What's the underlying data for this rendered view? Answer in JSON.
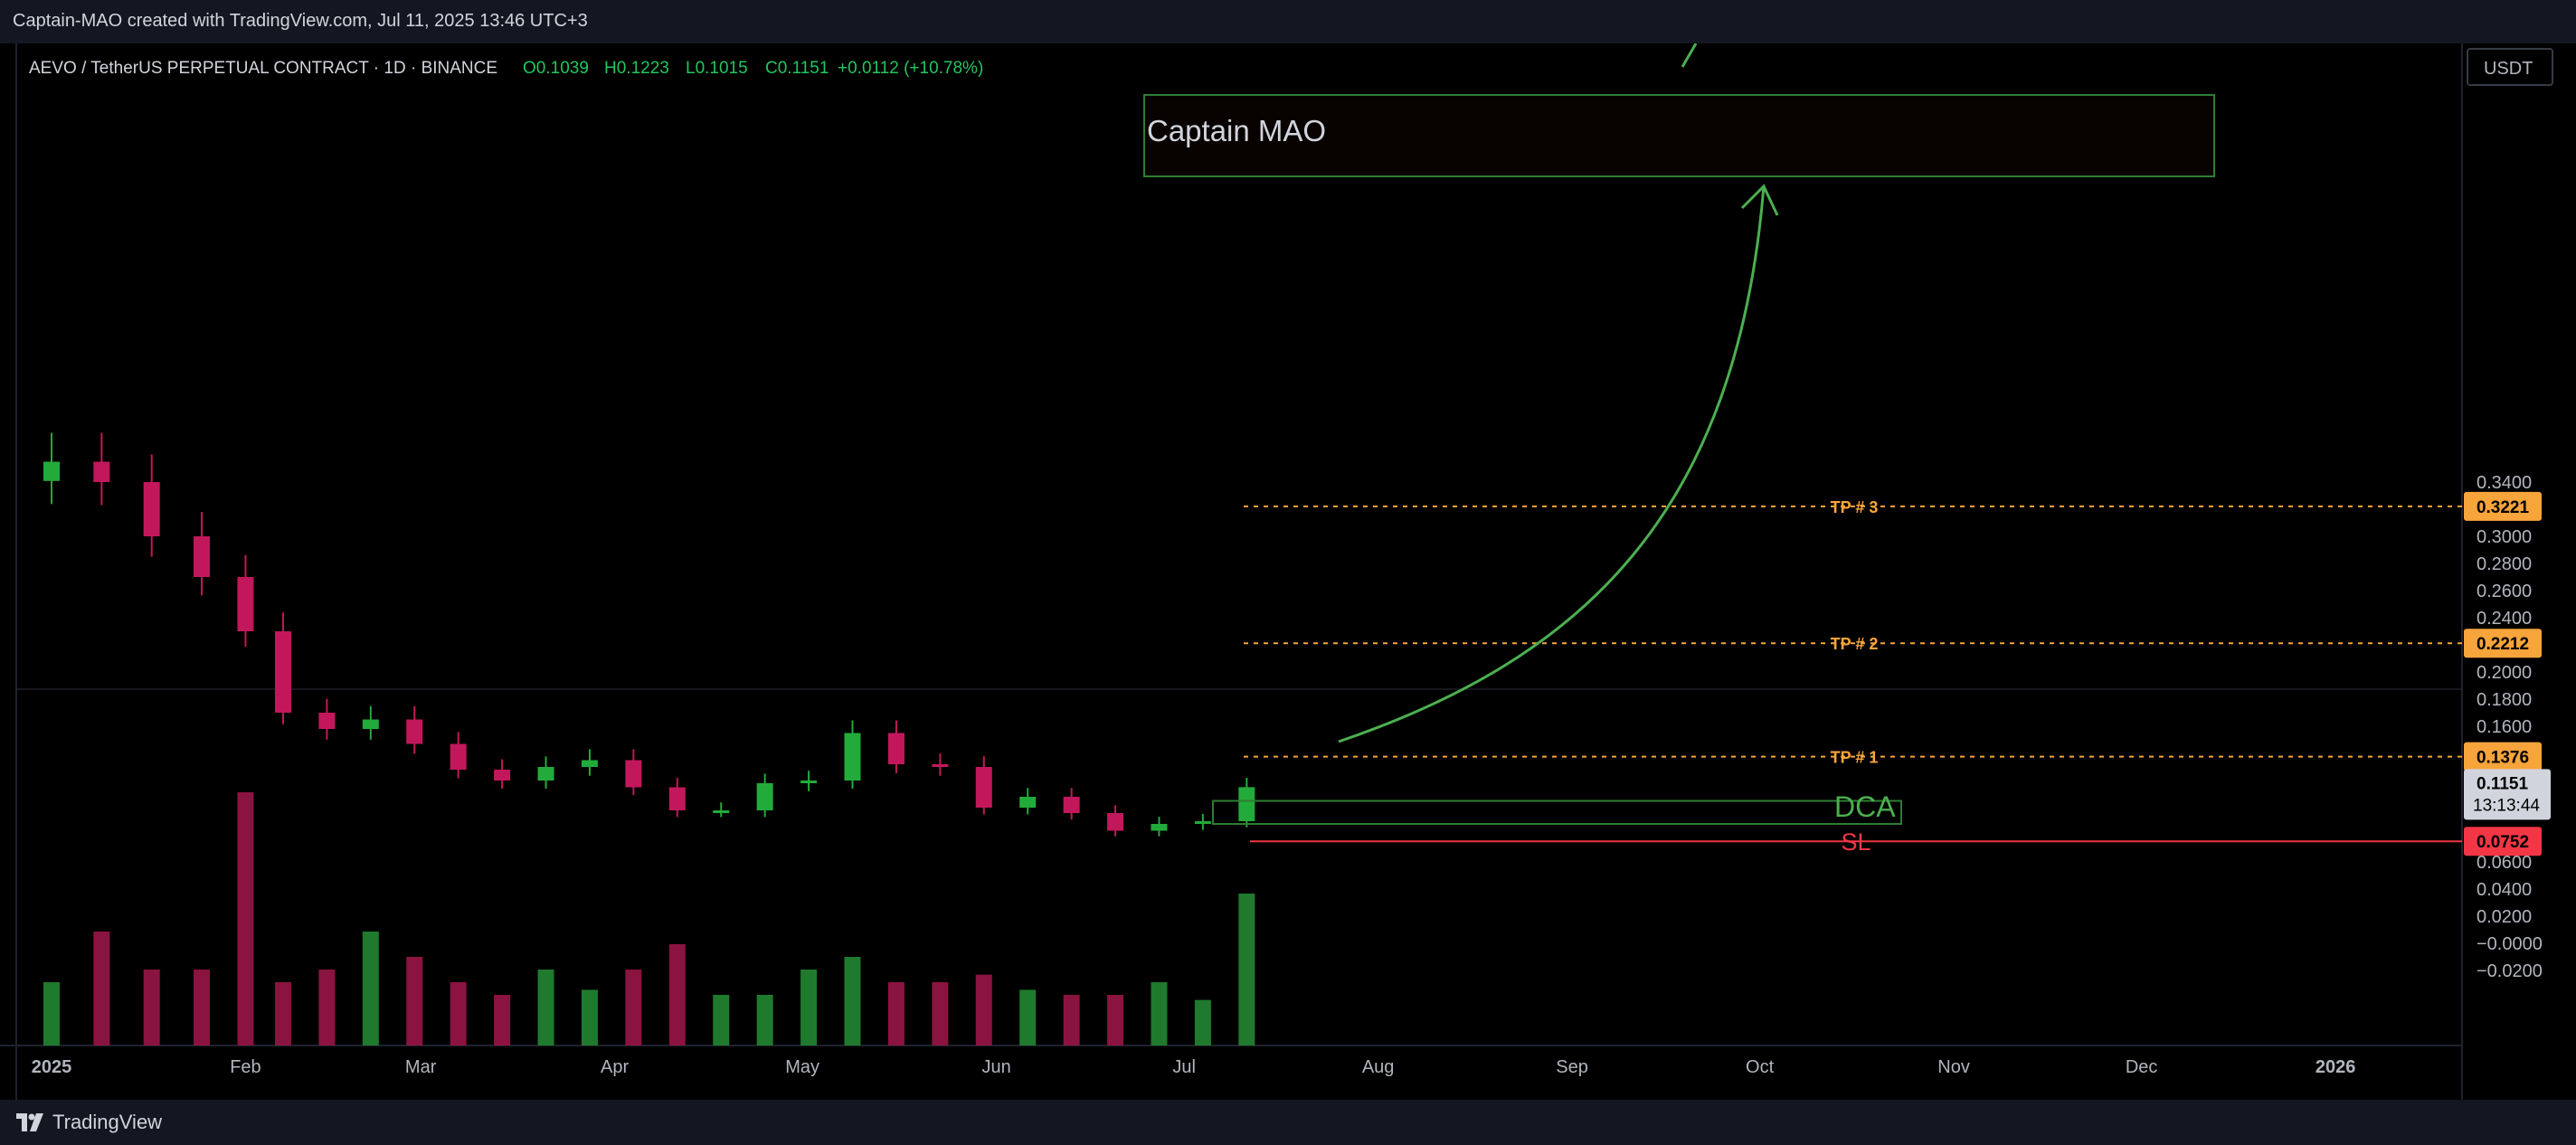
{
  "header": {
    "credit": "Captain-MAO created with TradingView.com, Jul 11, 2025 13:46 UTC+3"
  },
  "footer": {
    "brand": "TradingView"
  },
  "legend": {
    "symbol": "AEVO / TetherUS PERPETUAL CONTRACT · 1D · BINANCE",
    "open": "O0.1039",
    "high": "H0.1223",
    "low": "L0.1015",
    "close": "C0.1151",
    "change": "+0.0112 (+10.78%)"
  },
  "currency_button": "USDT",
  "colors": {
    "up": "#22ab3a",
    "down": "#c2185b",
    "tp": "#f7a43b",
    "sl": "#f23645",
    "green_annotation": "#4caf50"
  },
  "chart_data": {
    "type": "candlestick",
    "x": [
      "2025-01-01",
      "2025-01-09",
      "2025-01-17",
      "2025-01-25",
      "2025-02-01",
      "2025-02-07",
      "2025-02-14",
      "2025-02-21",
      "2025-02-28",
      "2025-03-07",
      "2025-03-14",
      "2025-03-21",
      "2025-03-28",
      "2025-04-04",
      "2025-04-11",
      "2025-04-18",
      "2025-04-25",
      "2025-05-02",
      "2025-05-09",
      "2025-05-16",
      "2025-05-23",
      "2025-05-30",
      "2025-06-06",
      "2025-06-13",
      "2025-06-20",
      "2025-06-27",
      "2025-07-04",
      "2025-07-11"
    ],
    "close_values": [
      0.355,
      0.34,
      0.3,
      0.27,
      0.23,
      0.17,
      0.158,
      0.165,
      0.147,
      0.128,
      0.12,
      0.13,
      0.135,
      0.115,
      0.098,
      0.098,
      0.118,
      0.12,
      0.155,
      0.132,
      0.13,
      0.1,
      0.108,
      0.096,
      0.083,
      0.088,
      0.09,
      0.1151
    ],
    "volume_relative": [
      0.25,
      0.45,
      0.3,
      0.3,
      1.0,
      0.25,
      0.3,
      0.45,
      0.35,
      0.25,
      0.2,
      0.3,
      0.22,
      0.3,
      0.4,
      0.2,
      0.2,
      0.3,
      0.35,
      0.25,
      0.25,
      0.28,
      0.22,
      0.2,
      0.2,
      0.25,
      0.18,
      0.6
    ],
    "y_axis": {
      "unit": "USDT",
      "ticks": [
        "0.3400",
        "0.3000",
        "0.2800",
        "0.2600",
        "0.2400",
        "0.2000",
        "0.1800",
        "0.1600",
        "0.0600",
        "0.0400",
        "0.0200",
        "−0.0000",
        "−0.0200"
      ]
    },
    "x_axis": {
      "ticks": [
        "2025",
        "Feb",
        "Mar",
        "Apr",
        "May",
        "Jun",
        "Jul",
        "Aug",
        "Sep",
        "Oct",
        "Nov",
        "Dec",
        "2026"
      ]
    },
    "annotations": {
      "watermark_box": "Captain MAO",
      "levels": [
        {
          "label": "TP # 3",
          "price": 0.3221,
          "tag": "0.3221",
          "kind": "tp"
        },
        {
          "label": "TP # 2",
          "price": 0.2212,
          "tag": "0.2212",
          "kind": "tp"
        },
        {
          "label": "TP # 1",
          "price": 0.1376,
          "tag": "0.1376",
          "kind": "tp"
        },
        {
          "label": "SL",
          "price": 0.0752,
          "tag": "0.0752",
          "kind": "sl"
        }
      ],
      "dca_zone": {
        "label": "DCA",
        "from": 0.088,
        "to": 0.105
      },
      "last_price": {
        "value": "0.1151",
        "countdown": "13:13:44"
      }
    }
  }
}
